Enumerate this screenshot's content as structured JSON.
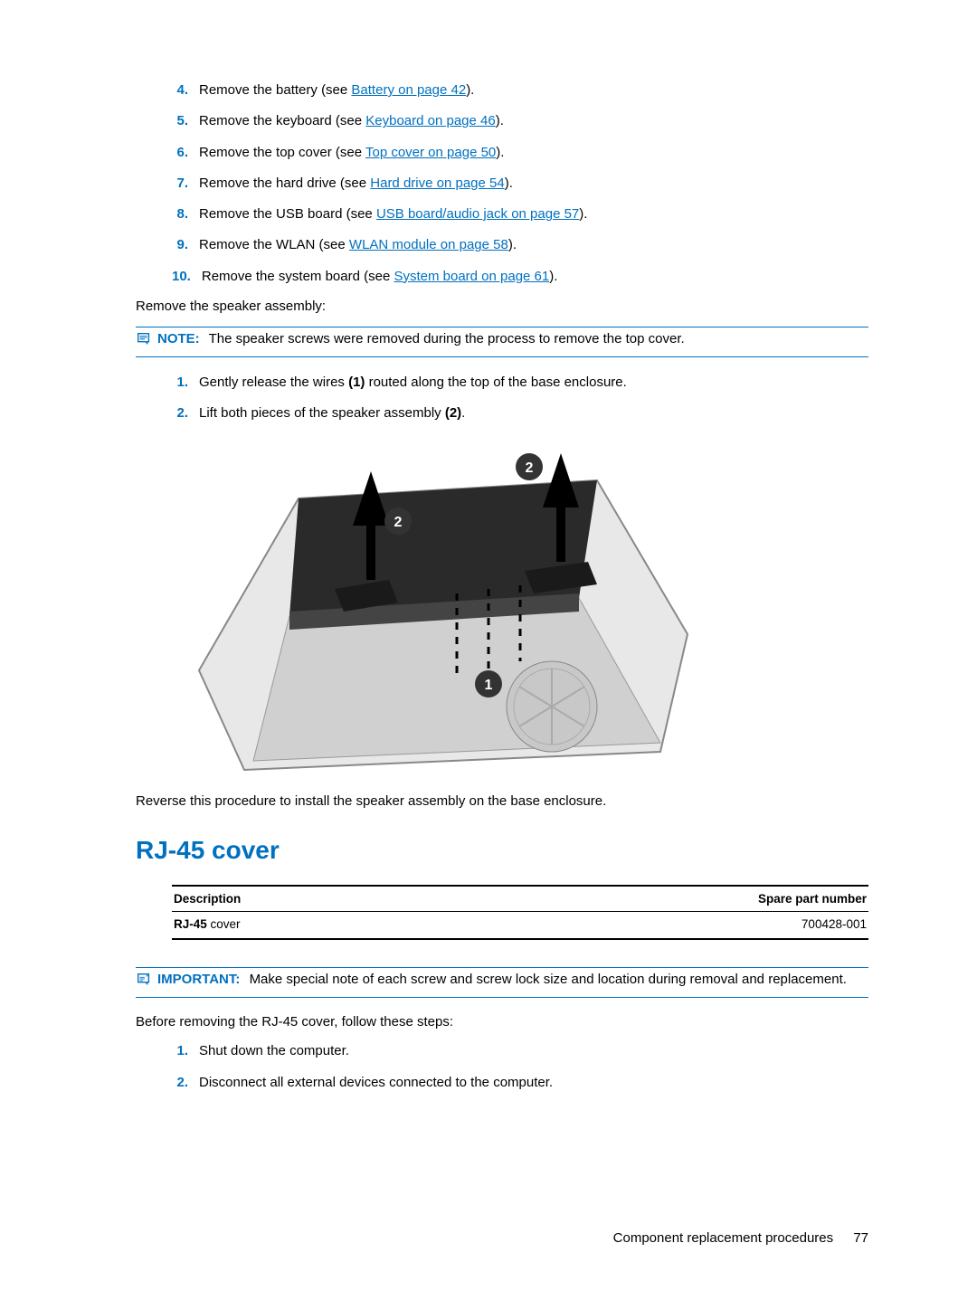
{
  "steps_a": [
    {
      "n": "4.",
      "pre": "Remove the battery (see ",
      "link": "Battery on page 42",
      "post": ")."
    },
    {
      "n": "5.",
      "pre": "Remove the keyboard (see ",
      "link": "Keyboard on page 46",
      "post": ")."
    },
    {
      "n": "6.",
      "pre": "Remove the top cover (see ",
      "link": "Top cover on page 50",
      "post": ")."
    },
    {
      "n": "7.",
      "pre": "Remove the hard drive (see ",
      "link": "Hard drive on page 54",
      "post": ")."
    },
    {
      "n": "8.",
      "pre": "Remove the USB board (see ",
      "link": "USB board/audio jack on page 57",
      "post": ")."
    },
    {
      "n": "9.",
      "pre": "Remove the WLAN (see ",
      "link": "WLAN module on page 58",
      "post": ")."
    },
    {
      "n": "10.",
      "pre": "Remove the system board (see ",
      "link": "System board on page 61",
      "post": ")."
    }
  ],
  "remove_line": "Remove the speaker assembly:",
  "note": {
    "label": "NOTE:",
    "text": "The speaker screws were removed during the process to remove the top cover."
  },
  "steps_b": [
    {
      "n": "1.",
      "html": "Gently release the wires <b>(1)</b> routed along the top of the base enclosure."
    },
    {
      "n": "2.",
      "html": "Lift both pieces of the speaker assembly <b>(2)</b>."
    }
  ],
  "reverse": "Reverse this procedure to install the speaker assembly on the base enclosure.",
  "section_title": "RJ-45 cover",
  "table": {
    "headers": {
      "desc": "Description",
      "spare": "Spare part number"
    },
    "row": {
      "desc_bold": "RJ-45",
      "desc_rest": " cover",
      "spare": "700428-001"
    }
  },
  "important": {
    "label": "IMPORTANT:",
    "text": "Make special note of each screw and screw lock size and location during removal and replacement."
  },
  "before_line": "Before removing the RJ-45 cover, follow these steps:",
  "steps_c": [
    {
      "n": "1.",
      "text": "Shut down the computer."
    },
    {
      "n": "2.",
      "text": "Disconnect all external devices connected to the computer."
    }
  ],
  "footer": {
    "label": "Component replacement procedures",
    "page": "77"
  },
  "icon_svg": {
    "note": "M2 2h14v12h-3l-3 3v-3H2z",
    "callout_circle_fill": "#333"
  },
  "colors": {
    "accent": "#0070c0",
    "text": "#000000",
    "rule": "#000000"
  }
}
